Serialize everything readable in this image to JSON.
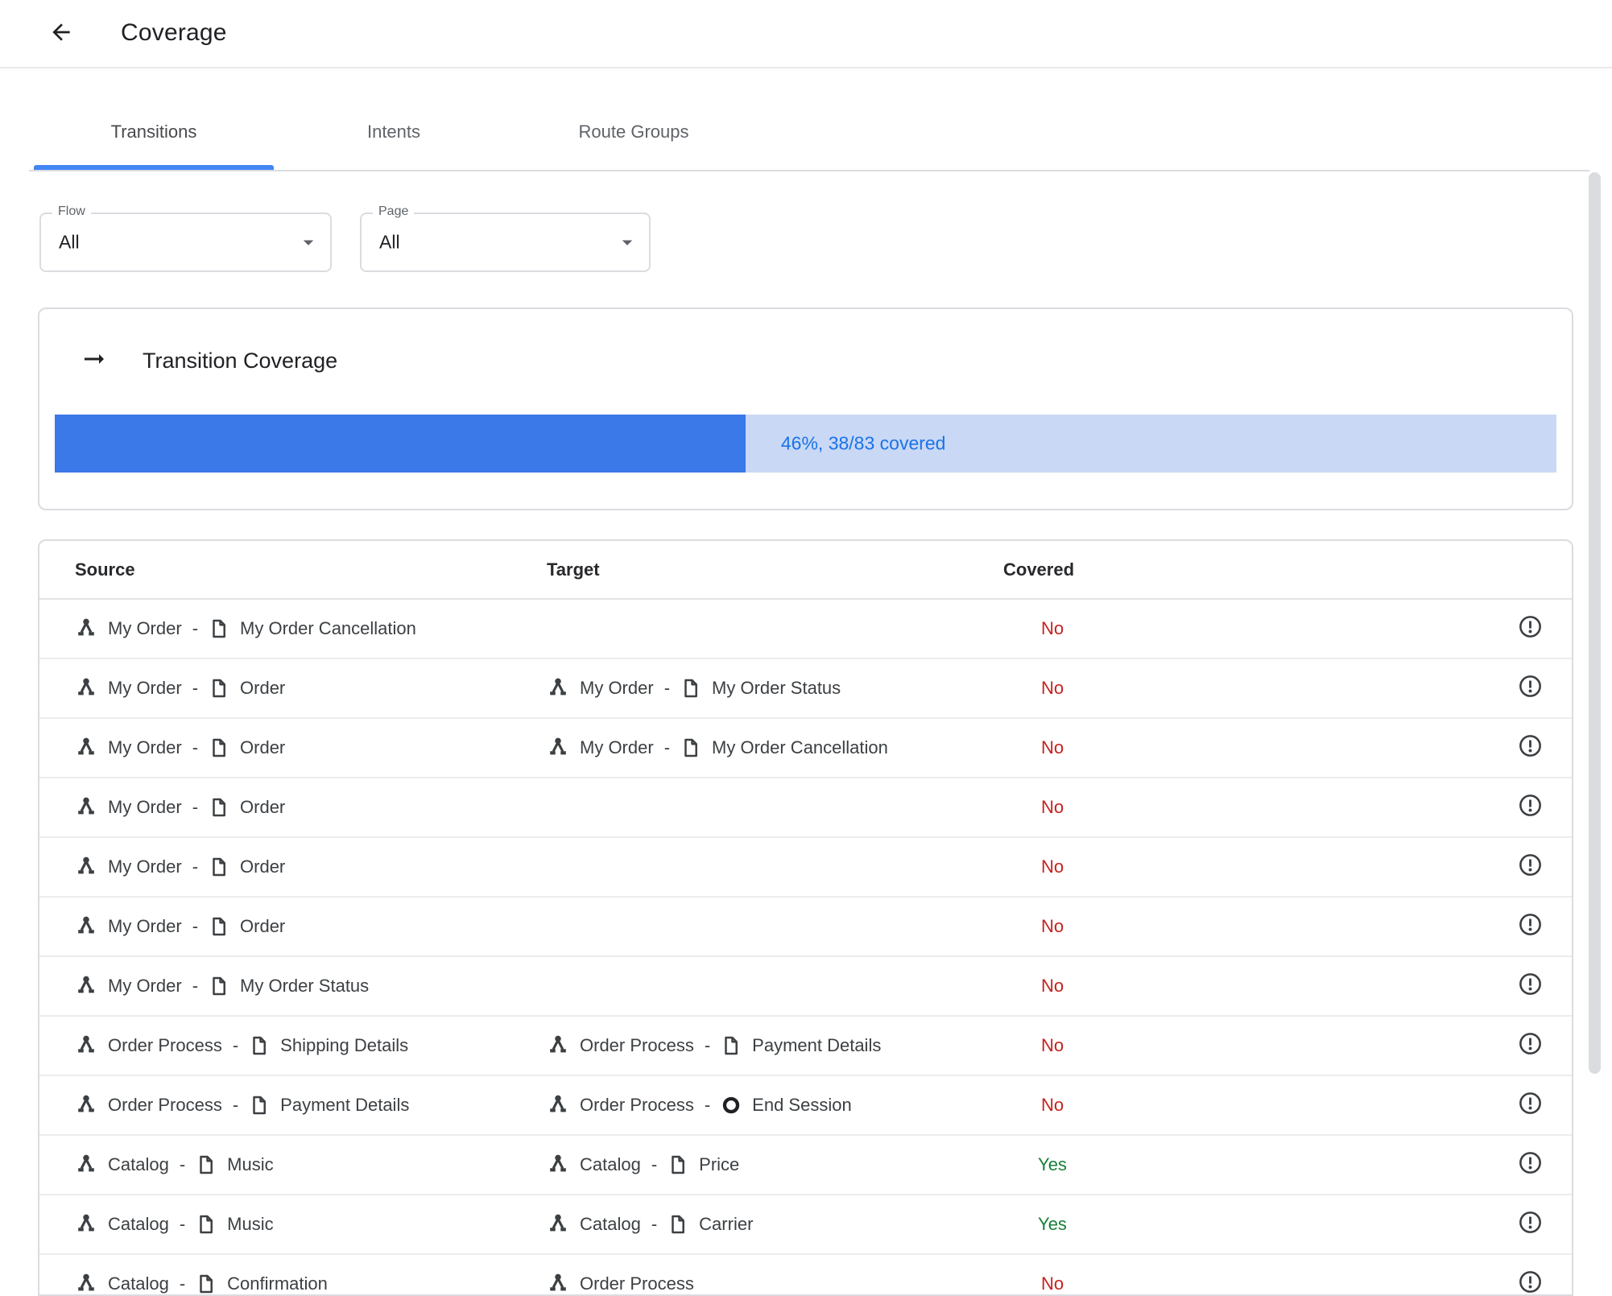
{
  "header": {
    "title": "Coverage",
    "back_icon": "arrow-left-icon"
  },
  "tabs": [
    {
      "label": "Transitions",
      "active": true
    },
    {
      "label": "Intents",
      "active": false
    },
    {
      "label": "Route Groups",
      "active": false
    }
  ],
  "filters": {
    "flow": {
      "label": "Flow",
      "value": "All"
    },
    "page": {
      "label": "Page",
      "value": "All"
    }
  },
  "coverage_card": {
    "icon": "arrow-right-icon",
    "title": "Transition Coverage",
    "percent": 46,
    "progress_label": "46%, 38/83 covered"
  },
  "table": {
    "columns": [
      "Source",
      "Target",
      "Covered"
    ],
    "separator": "-",
    "rows": [
      {
        "source": {
          "flow": "My Order",
          "page": "My Order Cancellation"
        },
        "target": null,
        "covered": "No"
      },
      {
        "source": {
          "flow": "My Order",
          "page": "Order"
        },
        "target": {
          "flow": "My Order",
          "page": "My Order Status"
        },
        "covered": "No"
      },
      {
        "source": {
          "flow": "My Order",
          "page": "Order"
        },
        "target": {
          "flow": "My Order",
          "page": "My Order Cancellation"
        },
        "covered": "No"
      },
      {
        "source": {
          "flow": "My Order",
          "page": "Order"
        },
        "target": null,
        "covered": "No"
      },
      {
        "source": {
          "flow": "My Order",
          "page": "Order"
        },
        "target": null,
        "covered": "No"
      },
      {
        "source": {
          "flow": "My Order",
          "page": "Order"
        },
        "target": null,
        "covered": "No"
      },
      {
        "source": {
          "flow": "My Order",
          "page": "My Order Status"
        },
        "target": null,
        "covered": "No"
      },
      {
        "source": {
          "flow": "Order Process",
          "page": "Shipping Details"
        },
        "target": {
          "flow": "Order Process",
          "page": "Payment Details"
        },
        "covered": "No"
      },
      {
        "source": {
          "flow": "Order Process",
          "page": "Payment Details"
        },
        "target": {
          "flow": "Order Process",
          "page": "End Session",
          "page_type": "end-session"
        },
        "covered": "No"
      },
      {
        "source": {
          "flow": "Catalog",
          "page": "Music"
        },
        "target": {
          "flow": "Catalog",
          "page": "Price"
        },
        "covered": "Yes"
      },
      {
        "source": {
          "flow": "Catalog",
          "page": "Music"
        },
        "target": {
          "flow": "Catalog",
          "page": "Carrier"
        },
        "covered": "Yes"
      },
      {
        "source": {
          "flow": "Catalog",
          "page": "Confirmation"
        },
        "target": {
          "flow": "Order Process",
          "page": null
        },
        "covered": "No"
      }
    ]
  },
  "colors": {
    "accent_blue": "#4285f4",
    "progress_fill": "#3b78e8",
    "progress_track": "#c9d8f4",
    "progress_text": "#1a73e8",
    "covered_no": "#c5221f",
    "covered_yes": "#188038",
    "text_dark": "#202124",
    "text_gray": "#5f6368",
    "border_gray": "#dadce0"
  }
}
